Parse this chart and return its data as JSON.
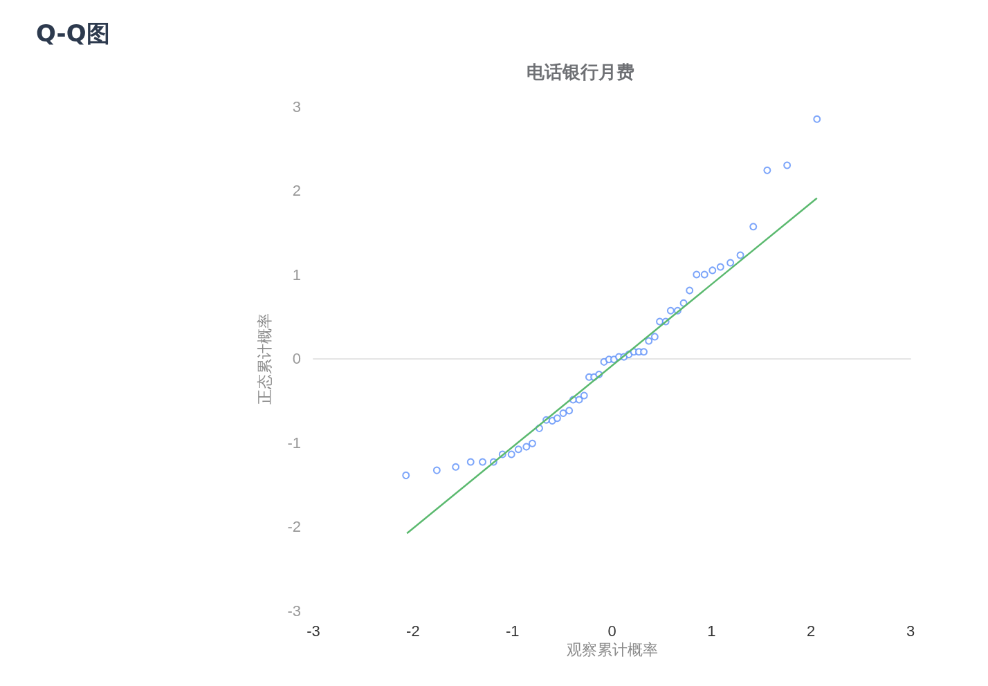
{
  "chart_data": {
    "type": "scatter",
    "title": "Q-Q图",
    "subtitle": "电话银行月费",
    "xlabel": "观察累计概率",
    "ylabel": "正态累计概率",
    "xlim": [
      -3,
      3
    ],
    "xticks": [
      -3,
      -2,
      -1,
      0,
      1,
      2,
      3
    ],
    "ylim": [
      -3,
      3
    ],
    "yticks": [
      -3,
      -2,
      -1,
      0,
      1,
      2,
      3
    ],
    "series": [
      {
        "type": "scatter",
        "color": "#5b8ff9",
        "marker": "circle",
        "x": [
          -2.07,
          -1.76,
          -1.57,
          -1.42,
          -1.3,
          -1.19,
          -1.1,
          -1.01,
          -0.94,
          -0.86,
          -0.8,
          -0.73,
          -0.66,
          -0.6,
          -0.55,
          -0.49,
          -0.43,
          -0.39,
          -0.33,
          -0.28,
          -0.23,
          -0.18,
          -0.13,
          -0.08,
          -0.03,
          0.02,
          0.07,
          0.12,
          0.17,
          0.22,
          0.27,
          0.32,
          0.37,
          0.43,
          0.48,
          0.54,
          0.59,
          0.66,
          0.72,
          0.78,
          0.85,
          0.93,
          1.01,
          1.09,
          1.19,
          1.29,
          1.42,
          1.56,
          1.76,
          2.06
        ],
        "values": [
          -1.39,
          -1.33,
          -1.29,
          -1.23,
          -1.23,
          -1.23,
          -1.14,
          -1.14,
          -1.08,
          -1.05,
          -1.01,
          -0.83,
          -0.73,
          -0.74,
          -0.71,
          -0.65,
          -0.62,
          -0.49,
          -0.49,
          -0.44,
          -0.22,
          -0.22,
          -0.19,
          -0.04,
          -0.01,
          -0.01,
          0.02,
          0.02,
          0.05,
          0.08,
          0.08,
          0.08,
          0.21,
          0.26,
          0.44,
          0.44,
          0.57,
          0.57,
          0.66,
          0.81,
          1.0,
          1.0,
          1.05,
          1.09,
          1.14,
          1.23,
          1.57,
          2.24,
          2.3,
          2.85
        ]
      },
      {
        "type": "line",
        "color": "#5ab96e",
        "marker": "none",
        "line_style": "solid",
        "x": [
          -2.06,
          2.06
        ],
        "values": [
          -2.08,
          1.91
        ]
      }
    ]
  }
}
